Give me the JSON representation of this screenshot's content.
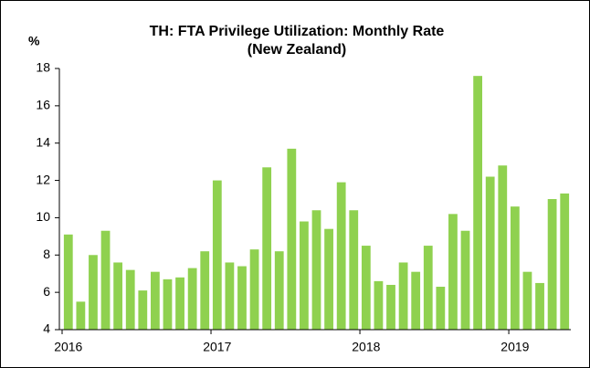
{
  "chart_data": {
    "type": "bar",
    "title": [
      "TH: FTA Privilege Utilization: Monthly Rate",
      "(New Zealand)"
    ],
    "y_label": "%",
    "categories": [
      "2016",
      null,
      null,
      null,
      null,
      null,
      null,
      null,
      null,
      null,
      null,
      null,
      "2017",
      null,
      null,
      null,
      null,
      null,
      null,
      null,
      null,
      null,
      null,
      null,
      "2018",
      null,
      null,
      null,
      null,
      null,
      null,
      null,
      null,
      null,
      null,
      null,
      "2019",
      null,
      null,
      null,
      null
    ],
    "values": [
      9.1,
      5.5,
      8.0,
      9.3,
      7.6,
      7.2,
      6.1,
      7.1,
      6.7,
      6.8,
      7.3,
      8.2,
      12.0,
      7.6,
      7.4,
      8.3,
      12.7,
      8.2,
      13.7,
      9.8,
      10.4,
      9.4,
      11.9,
      10.4,
      8.5,
      6.6,
      6.4,
      7.6,
      7.1,
      8.5,
      6.3,
      10.2,
      9.3,
      17.6,
      12.2,
      12.8,
      10.6,
      7.1,
      6.5,
      11.0,
      11.3
    ],
    "color": "#8fd14f",
    "ylim": [
      4,
      18
    ],
    "yticks": [
      4,
      6,
      8,
      10,
      12,
      14,
      16,
      18
    ],
    "grid": false
  }
}
